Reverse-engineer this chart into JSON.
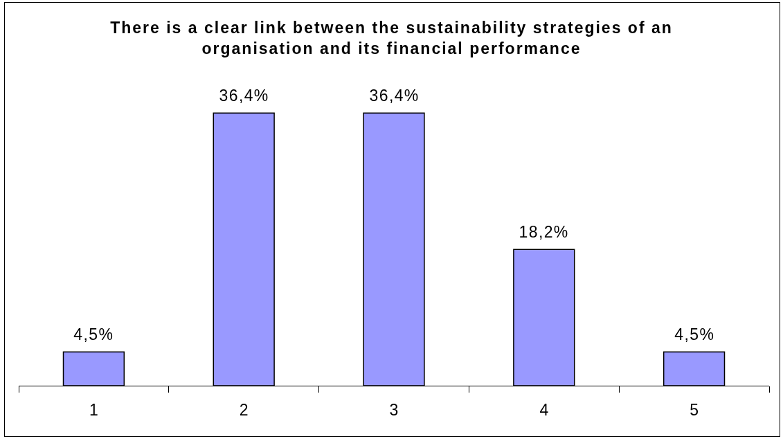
{
  "chart_data": {
    "type": "bar",
    "title": "There is a clear link between the sustainability strategies of an organisation and its financial performance",
    "categories": [
      "1",
      "2",
      "3",
      "4",
      "5"
    ],
    "values": [
      4.5,
      36.4,
      36.4,
      18.2,
      4.5
    ],
    "value_labels": [
      "4,5%",
      "36,4%",
      "36,4%",
      "18,2%",
      "4,5%"
    ],
    "color": "#9999ff"
  }
}
